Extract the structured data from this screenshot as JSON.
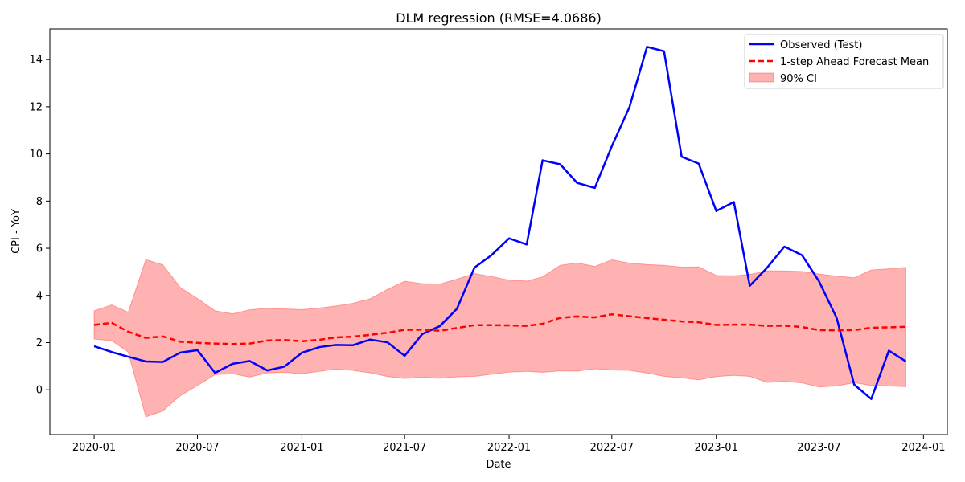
{
  "chart_data": {
    "type": "line",
    "title": "DLM regression (RMSE=4.0686)",
    "xlabel": "Date",
    "ylabel": "CPI - YoY",
    "x_ticks": [
      "2020-01",
      "2020-07",
      "2021-01",
      "2021-07",
      "2022-01",
      "2022-07",
      "2023-01",
      "2023-07",
      "2024-01"
    ],
    "y_ticks": [
      0,
      2,
      4,
      6,
      8,
      10,
      12,
      14
    ],
    "xlim": [
      "2019-10-15",
      "2024-02-12"
    ],
    "ylim": [
      -1.9,
      15.3
    ],
    "grid": false,
    "legend_position": "top-right",
    "x": [
      "2020-01",
      "2020-02",
      "2020-03",
      "2020-04",
      "2020-05",
      "2020-06",
      "2020-07",
      "2020-08",
      "2020-09",
      "2020-10",
      "2020-11",
      "2020-12",
      "2021-01",
      "2021-02",
      "2021-03",
      "2021-04",
      "2021-05",
      "2021-06",
      "2021-07",
      "2021-08",
      "2021-09",
      "2021-10",
      "2021-11",
      "2021-12",
      "2022-01",
      "2022-02",
      "2022-03",
      "2022-04",
      "2022-05",
      "2022-06",
      "2022-07",
      "2022-08",
      "2022-09",
      "2022-10",
      "2022-11",
      "2022-12",
      "2023-01",
      "2023-02",
      "2023-03",
      "2023-04",
      "2023-05",
      "2023-06",
      "2023-07",
      "2023-08",
      "2023-09",
      "2023-10",
      "2023-11",
      "2023-12"
    ],
    "series": [
      {
        "name": "Observed (Test)",
        "style": "solid",
        "color": "#0000ff",
        "values": [
          1.85,
          1.6,
          1.4,
          1.2,
          1.18,
          1.58,
          1.68,
          0.72,
          1.1,
          1.22,
          0.82,
          0.98,
          1.57,
          1.81,
          1.9,
          1.89,
          2.13,
          2.01,
          1.44,
          2.36,
          2.7,
          3.43,
          5.18,
          5.71,
          6.42,
          6.16,
          9.73,
          9.56,
          8.77,
          8.56,
          10.33,
          11.98,
          14.54,
          14.35,
          9.88,
          9.59,
          7.58,
          7.96,
          4.41,
          5.19,
          6.07,
          5.71,
          4.6,
          3.05,
          0.22,
          -0.39,
          1.66,
          1.2
        ]
      },
      {
        "name": "1-step Ahead Forecast Mean",
        "style": "dashed",
        "color": "#ff0000",
        "values": [
          2.75,
          2.84,
          2.46,
          2.2,
          2.26,
          2.04,
          1.99,
          1.96,
          1.94,
          1.96,
          2.09,
          2.11,
          2.06,
          2.12,
          2.22,
          2.25,
          2.33,
          2.42,
          2.54,
          2.55,
          2.5,
          2.62,
          2.74,
          2.74,
          2.73,
          2.71,
          2.8,
          3.05,
          3.11,
          3.07,
          3.2,
          3.12,
          3.04,
          2.97,
          2.9,
          2.86,
          2.75,
          2.76,
          2.76,
          2.71,
          2.72,
          2.66,
          2.53,
          2.52,
          2.53,
          2.63,
          2.65,
          2.67
        ]
      }
    ],
    "band": {
      "name": "90% CI",
      "color": "#ff0000",
      "alpha": 0.3,
      "lower": [
        2.15,
        2.08,
        1.6,
        -1.15,
        -0.9,
        -0.25,
        0.18,
        0.64,
        0.68,
        0.54,
        0.72,
        0.74,
        0.68,
        0.78,
        0.87,
        0.82,
        0.72,
        0.56,
        0.48,
        0.53,
        0.49,
        0.55,
        0.57,
        0.66,
        0.75,
        0.78,
        0.74,
        0.8,
        0.79,
        0.89,
        0.84,
        0.82,
        0.71,
        0.57,
        0.51,
        0.42,
        0.56,
        0.61,
        0.57,
        0.31,
        0.36,
        0.29,
        0.12,
        0.16,
        0.3,
        0.18,
        0.16,
        0.13
      ],
      "upper": [
        3.35,
        3.6,
        3.29,
        5.52,
        5.3,
        4.33,
        3.87,
        3.35,
        3.22,
        3.39,
        3.46,
        3.43,
        3.4,
        3.47,
        3.55,
        3.67,
        3.86,
        4.26,
        4.6,
        4.5,
        4.48,
        4.69,
        4.93,
        4.8,
        4.65,
        4.61,
        4.79,
        5.28,
        5.38,
        5.23,
        5.51,
        5.37,
        5.31,
        5.28,
        5.2,
        5.21,
        4.85,
        4.83,
        4.89,
        5.05,
        5.04,
        5.02,
        4.91,
        4.82,
        4.75,
        5.08,
        5.13,
        5.19
      ]
    }
  }
}
